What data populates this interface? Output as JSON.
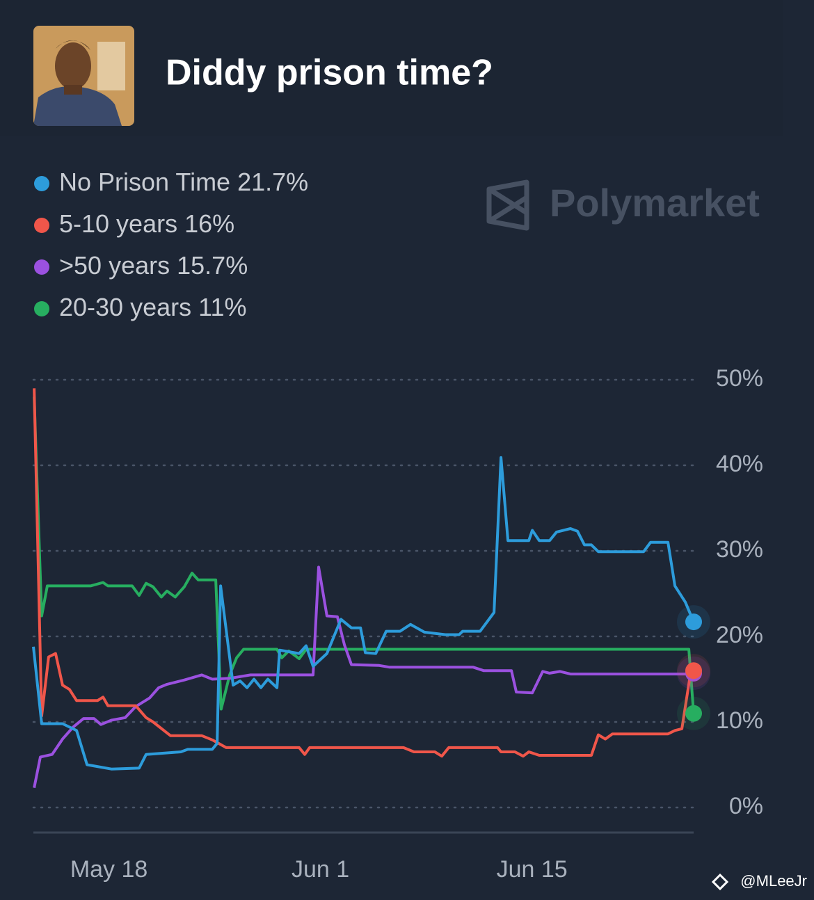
{
  "header": {
    "title": "Diddy prison time?"
  },
  "watermark": "Polymarket",
  "credit": "@MLeeJr",
  "chart_data": {
    "type": "line",
    "xlim": [
      0,
      43.7
    ],
    "xticks": [
      {
        "value": 5,
        "label": "May 18"
      },
      {
        "value": 19,
        "label": "Jun 1"
      },
      {
        "value": 33,
        "label": "Jun 15"
      }
    ],
    "ylim": [
      0,
      50
    ],
    "yticks": [
      {
        "value": 0,
        "label": "0%"
      },
      {
        "value": 10,
        "label": "10%"
      },
      {
        "value": 20,
        "label": "20%"
      },
      {
        "value": 30,
        "label": "30%"
      },
      {
        "value": 40,
        "label": "40%"
      },
      {
        "value": 50,
        "label": "50%"
      }
    ],
    "grid": true,
    "legend": "top-left",
    "series": [
      {
        "name": "No Prison Time",
        "current": "21.7%",
        "color": "#2d9cdb",
        "x": [
          0,
          0.55,
          1.93,
          2.86,
          3.55,
          5.16,
          7.0,
          7.46,
          9.76,
          10.22,
          11.84,
          12.16,
          12.39,
          13.22,
          13.68,
          14.14,
          14.6,
          15.06,
          15.52,
          16.12,
          16.3,
          17.59,
          18.05,
          18.51,
          19.43,
          20.36,
          21.05,
          21.65,
          21.97,
          22.66,
          23.35,
          24.27,
          24.96,
          25.88,
          27.26,
          28.18,
          28.41,
          29.57,
          30.49,
          30.95,
          31.41,
          32.79,
          33.02,
          33.48,
          34.17,
          34.63,
          35.55,
          36.01,
          36.47,
          36.93,
          37.39,
          40.39,
          40.85,
          42.0,
          42.46,
          43.15,
          43.7
        ],
        "values": [
          18.8,
          9.8,
          9.8,
          9,
          5,
          4.5,
          4.6,
          6.2,
          6.5,
          6.8,
          6.8,
          7.5,
          25.9,
          14.3,
          14.8,
          14,
          15,
          14,
          15,
          14,
          18.4,
          18,
          18.9,
          16.5,
          18,
          22,
          21,
          21,
          18.1,
          18,
          20.6,
          20.6,
          21.4,
          20.5,
          20.2,
          20.2,
          20.6,
          20.6,
          22.8,
          40.9,
          31.2,
          31.2,
          32.4,
          31.2,
          31.2,
          32.2,
          32.6,
          32.3,
          30.7,
          30.7,
          29.9,
          29.9,
          31,
          31,
          25.9,
          24,
          21.7
        ]
      },
      {
        "name": "5-10 years",
        "current": "16%",
        "color": "#f0564a",
        "x": [
          0.05,
          0.55,
          1.01,
          1.47,
          1.93,
          2.39,
          2.86,
          4.24,
          4.61,
          4.93,
          6.77,
          7.46,
          7.92,
          9.07,
          11.14,
          11.84,
          12.76,
          17.59,
          17.96,
          18.28,
          24.5,
          25.19,
          26.57,
          27.03,
          27.49,
          30.72,
          30.95,
          31.87,
          32.42,
          32.79,
          33.48,
          36.93,
          37.39,
          37.85,
          38.32,
          42.0,
          42.46,
          42.92,
          43.52,
          43.7
        ],
        "values": [
          49,
          10.7,
          17.6,
          18,
          14.3,
          13.8,
          12.5,
          12.5,
          12.9,
          11.9,
          11.9,
          10.5,
          10,
          8.4,
          8.4,
          7.9,
          7,
          7,
          6.2,
          7,
          7,
          6.5,
          6.5,
          6,
          7,
          7,
          6.5,
          6.5,
          6,
          6.5,
          6.1,
          6.1,
          8.5,
          8,
          8.6,
          8.6,
          9,
          9.2,
          16,
          16
        ]
      },
      {
        "name": ">50 years",
        "current": "15.7%",
        "color": "#9b51e0",
        "x": [
          0.05,
          0.46,
          1.24,
          1.93,
          2.63,
          3.32,
          4.01,
          4.47,
          5.16,
          6.08,
          6.77,
          7.69,
          8.29,
          8.84,
          9.99,
          11.14,
          11.84,
          12.99,
          14.37,
          18.51,
          18.88,
          19.43,
          20.12,
          20.59,
          21.05,
          22.89,
          23.58,
          29.11,
          29.8,
          31.64,
          31.96,
          33.02,
          33.71,
          34.17,
          34.86,
          35.55,
          43.15,
          43.7
        ],
        "values": [
          2.3,
          5.9,
          6.2,
          8,
          9.4,
          10.4,
          10.4,
          9.7,
          10.2,
          10.5,
          11.8,
          12.8,
          14,
          14.4,
          14.9,
          15.5,
          15,
          15.1,
          15.5,
          15.5,
          28.1,
          22.4,
          22.3,
          19,
          16.7,
          16.6,
          16.4,
          16.4,
          16,
          16,
          13.5,
          13.4,
          15.9,
          15.7,
          15.9,
          15.6,
          15.6,
          15.7
        ]
      },
      {
        "name": "20-30 years",
        "current": "11%",
        "color": "#27ae60",
        "x": [
          0.05,
          0.55,
          0.92,
          3.78,
          4.61,
          4.93,
          6.54,
          7.0,
          7.46,
          7.92,
          8.47,
          8.84,
          9.39,
          9.99,
          10.5,
          10.91,
          12.07,
          12.43,
          12.99,
          13.45,
          13.91,
          16.12,
          16.44,
          16.9,
          17.59,
          18.05,
          43.38,
          43.7
        ],
        "values": [
          48,
          22.4,
          25.9,
          25.9,
          26.3,
          25.9,
          25.9,
          24.8,
          26.2,
          25.8,
          24.6,
          25.3,
          24.6,
          25.8,
          27.4,
          26.6,
          26.6,
          11.5,
          15.5,
          17.5,
          18.5,
          18.5,
          17.5,
          18.3,
          17.4,
          18.5,
          18.5,
          11
        ]
      }
    ]
  }
}
